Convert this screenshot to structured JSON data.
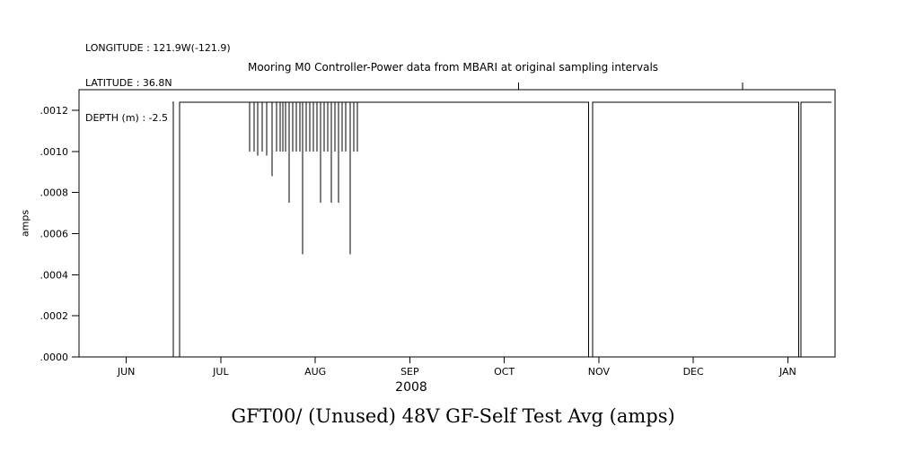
{
  "header": {
    "longitude": "LONGITUDE : 121.9W(-121.9)",
    "latitude": "LATITUDE : 36.8N",
    "depth": "DEPTH (m) : -2.5"
  },
  "caption": "GFT00/ (Unused) 48V GF-Self Test Avg (amps)",
  "chart_data": {
    "type": "line",
    "title": "Mooring M0 Controller-Power data from MBARI at original sampling intervals",
    "xlabel": "2008",
    "ylabel": "amps",
    "grid": false,
    "line_color": "#000000",
    "x_ticks": [
      "JUN",
      "JUL",
      "AUG",
      "SEP",
      "OCT",
      "NOV",
      "DEC",
      "JAN"
    ],
    "x_tick_positions": [
      1,
      2,
      3,
      4,
      5,
      6,
      7,
      8
    ],
    "xlim_months": [
      0.5,
      8.5
    ],
    "y_ticks": [
      ".0000",
      ".0002",
      ".0004",
      ".0006",
      ".0008",
      ".0010",
      ".0012"
    ],
    "y_tick_values": [
      0,
      0.0002,
      0.0004,
      0.0006,
      0.0008,
      0.001,
      0.0012
    ],
    "ylim": [
      0,
      0.0013
    ],
    "top_ticks_t": [
      5.15,
      7.52
    ],
    "baseline_value": 0.00124,
    "series": {
      "name": "48V GF-Self Test Avg",
      "start_t": 1.49,
      "end_t": 8.46,
      "zero_drops": [
        [
          1.498,
          1.564
        ],
        [
          5.893,
          5.935
        ],
        [
          8.115,
          8.14
        ]
      ],
      "spikes": [
        [
          2.305,
          0.001
        ],
        [
          2.353,
          0.001
        ],
        [
          2.391,
          0.00098
        ],
        [
          2.438,
          0.001
        ],
        [
          2.486,
          0.00098
        ],
        [
          2.543,
          0.00088
        ],
        [
          2.59,
          0.001
        ],
        [
          2.628,
          0.001
        ],
        [
          2.657,
          0.001
        ],
        [
          2.685,
          0.001
        ],
        [
          2.723,
          0.00075
        ],
        [
          2.761,
          0.001
        ],
        [
          2.799,
          0.001
        ],
        [
          2.837,
          0.001
        ],
        [
          2.866,
          0.0005
        ],
        [
          2.904,
          0.001
        ],
        [
          2.942,
          0.001
        ],
        [
          2.98,
          0.001
        ],
        [
          3.018,
          0.001
        ],
        [
          3.056,
          0.00075
        ],
        [
          3.094,
          0.001
        ],
        [
          3.132,
          0.001
        ],
        [
          3.17,
          0.00075
        ],
        [
          3.208,
          0.001
        ],
        [
          3.246,
          0.00075
        ],
        [
          3.284,
          0.001
        ],
        [
          3.322,
          0.001
        ],
        [
          3.369,
          0.0005
        ],
        [
          3.407,
          0.001
        ],
        [
          3.445,
          0.001
        ]
      ]
    }
  }
}
